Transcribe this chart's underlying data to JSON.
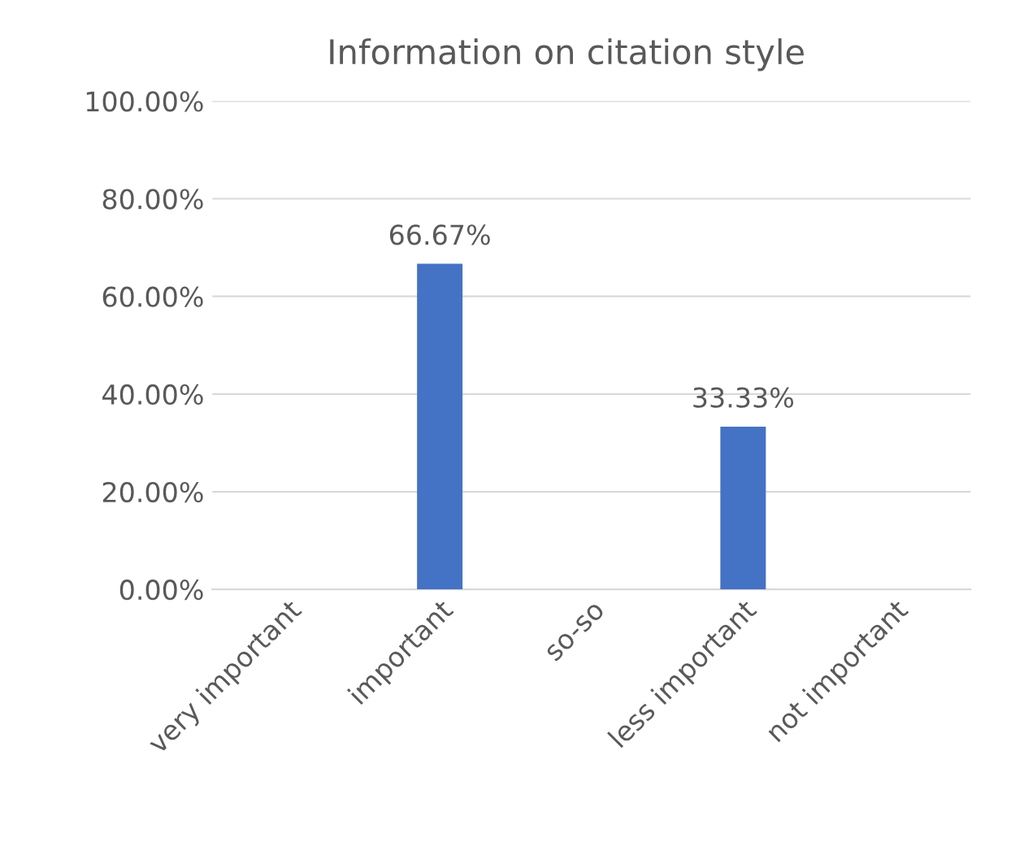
{
  "chart_data": {
    "type": "bar",
    "title": "Information on citation style",
    "categories": [
      "very important",
      "important",
      "so-so",
      "less important",
      "not important"
    ],
    "values": [
      0,
      66.67,
      0,
      33.33,
      0
    ],
    "value_labels": [
      null,
      "66.67%",
      null,
      "33.33%",
      null
    ],
    "color": "#4472c4",
    "ylim": [
      0,
      100
    ],
    "yticks": [
      {
        "value": 0,
        "label": "0.00%"
      },
      {
        "value": 20,
        "label": "20.00%"
      },
      {
        "value": 40,
        "label": "40.00%"
      },
      {
        "value": 60,
        "label": "60.00%"
      },
      {
        "value": 80,
        "label": "80.00%"
      },
      {
        "value": 100,
        "label": "100.00%"
      }
    ],
    "grid": "y",
    "legend": false
  }
}
